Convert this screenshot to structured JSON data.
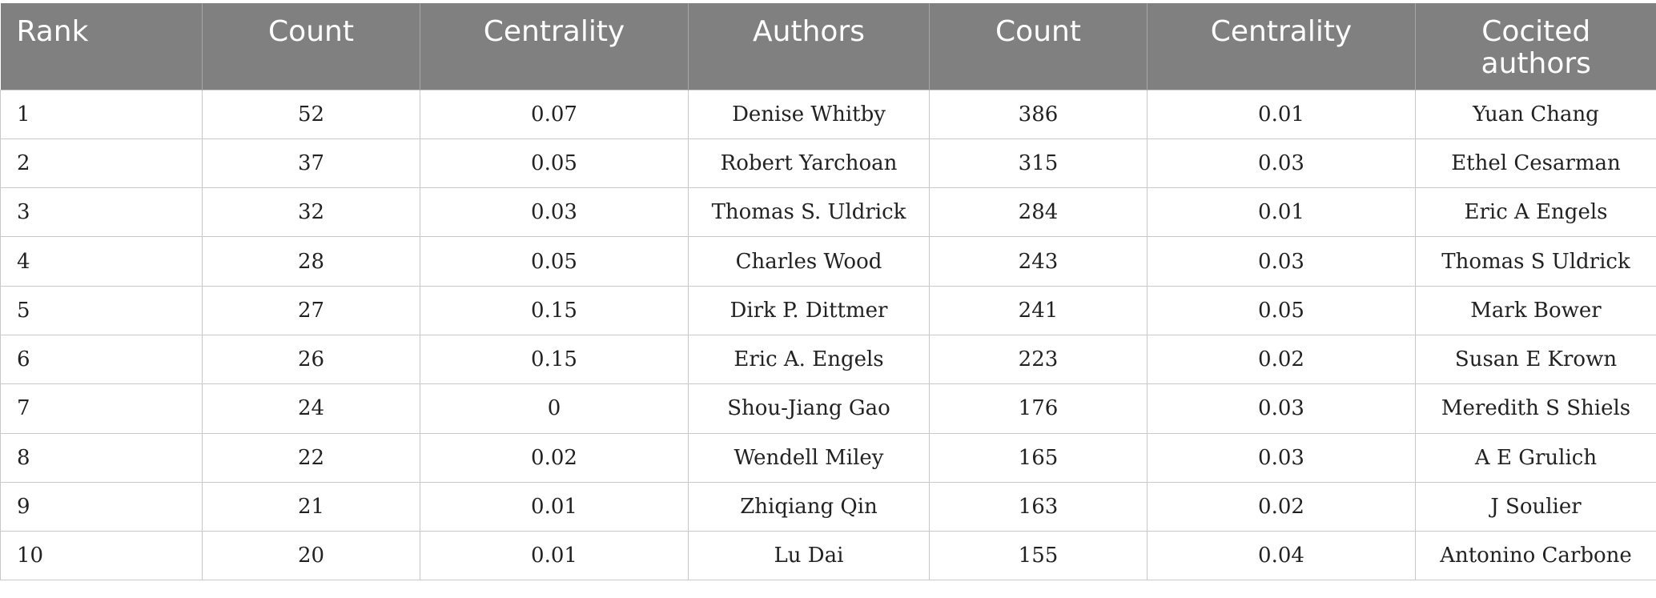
{
  "table": {
    "headers": [
      "Rank",
      "Count",
      "Centrality",
      "Authors",
      "Count",
      "Centrality",
      "Cocited authors"
    ],
    "rows": [
      [
        "1",
        "52",
        "0.07",
        "Denise Whitby",
        "386",
        "0.01",
        "Yuan Chang"
      ],
      [
        "2",
        "37",
        "0.05",
        "Robert Yarchoan",
        "315",
        "0.03",
        "Ethel Cesarman"
      ],
      [
        "3",
        "32",
        "0.03",
        "Thomas S. Uldrick",
        "284",
        "0.01",
        "Eric A Engels"
      ],
      [
        "4",
        "28",
        "0.05",
        "Charles Wood",
        "243",
        "0.03",
        "Thomas S Uldrick"
      ],
      [
        "5",
        "27",
        "0.15",
        "Dirk P. Dittmer",
        "241",
        "0.05",
        "Mark Bower"
      ],
      [
        "6",
        "26",
        "0.15",
        "Eric A. Engels",
        "223",
        "0.02",
        "Susan E Krown"
      ],
      [
        "7",
        "24",
        "0",
        "Shou-Jiang Gao",
        "176",
        "0.03",
        "Meredith S Shiels"
      ],
      [
        "8",
        "22",
        "0.02",
        "Wendell Miley",
        "165",
        "0.03",
        "A E Grulich"
      ],
      [
        "9",
        "21",
        "0.01",
        "Zhiqiang Qin",
        "163",
        "0.02",
        "J Soulier"
      ],
      [
        "10",
        "20",
        "0.01",
        "Lu Dai",
        "155",
        "0.04",
        "Antonino Carbone"
      ]
    ]
  },
  "colors": {
    "header_bg": "#808080",
    "header_text": "#ffffff",
    "grid_line": "#c8c8c8"
  }
}
